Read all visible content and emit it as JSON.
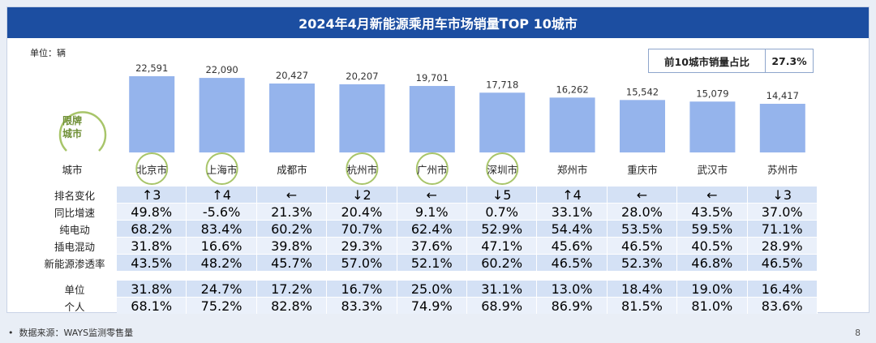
{
  "title": "2024年4月新能源乘用车市场销量TOP 10城市",
  "unit_note": "单位：辆",
  "share": {
    "label": "前10城市销量占比",
    "value": "27.3%"
  },
  "badge": {
    "line1": "限牌",
    "line2": "城市"
  },
  "city_header": "城市",
  "footer": "数据来源：WAYS监测零售量",
  "page_number": "8",
  "colors": {
    "bar": "#95b4ec",
    "title_bg": "#1c4ea1",
    "row_a": "#d4e1f5",
    "row_b": "#eaf0fa",
    "circle": "#a8c56a"
  },
  "chart_data": {
    "type": "bar",
    "categories": [
      "北京市",
      "上海市",
      "成都市",
      "杭州市",
      "广州市",
      "深圳市",
      "郑州市",
      "重庆市",
      "武汉市",
      "苏州市"
    ],
    "values": [
      22591,
      22090,
      20427,
      20207,
      19701,
      17718,
      16262,
      15542,
      15079,
      14417
    ],
    "value_labels": [
      "22,591",
      "22,090",
      "20,427",
      "20,207",
      "19,701",
      "17,718",
      "16,262",
      "15,542",
      "15,079",
      "14,417"
    ],
    "restricted_plate": [
      true,
      true,
      false,
      true,
      true,
      true,
      false,
      false,
      false,
      false
    ]
  },
  "table": {
    "rows": [
      {
        "label": "排名变化",
        "values": [
          "↑3",
          "↑4",
          "←",
          "↓2",
          "←",
          "↓5",
          "↑4",
          "←",
          "←",
          "↓3"
        ]
      },
      {
        "label": "同比增速",
        "values": [
          "49.8%",
          "-5.6%",
          "21.3%",
          "20.4%",
          "9.1%",
          "0.7%",
          "33.1%",
          "28.0%",
          "43.5%",
          "37.0%"
        ]
      },
      {
        "label": "纯电动",
        "values": [
          "68.2%",
          "83.4%",
          "60.2%",
          "70.7%",
          "62.4%",
          "52.9%",
          "54.4%",
          "53.5%",
          "59.5%",
          "71.1%"
        ]
      },
      {
        "label": "插电混动",
        "values": [
          "31.8%",
          "16.6%",
          "39.8%",
          "29.3%",
          "37.6%",
          "47.1%",
          "45.6%",
          "46.5%",
          "40.5%",
          "28.9%"
        ]
      },
      {
        "label": "新能源渗透率",
        "values": [
          "43.5%",
          "48.2%",
          "45.7%",
          "57.0%",
          "52.1%",
          "60.2%",
          "46.5%",
          "52.3%",
          "46.8%",
          "46.5%"
        ]
      }
    ],
    "rows2": [
      {
        "label": "单位",
        "values": [
          "31.8%",
          "24.7%",
          "17.2%",
          "16.7%",
          "25.0%",
          "31.1%",
          "13.0%",
          "18.4%",
          "19.0%",
          "16.4%"
        ]
      },
      {
        "label": "个人",
        "values": [
          "68.1%",
          "75.2%",
          "82.8%",
          "83.3%",
          "74.9%",
          "68.9%",
          "86.9%",
          "81.5%",
          "81.0%",
          "83.6%"
        ]
      }
    ]
  }
}
